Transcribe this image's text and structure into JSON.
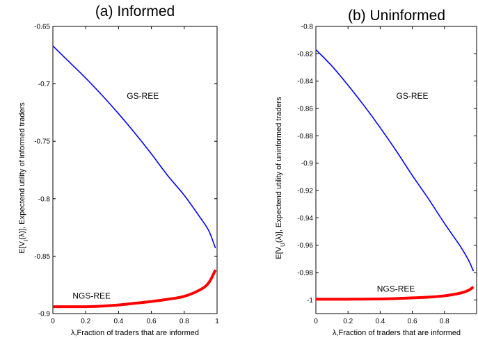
{
  "chart_data": [
    {
      "type": "line",
      "title": "(a) Informed",
      "xlabel": "λ,Fraction of traders that are informed",
      "ylabel_parts": [
        "E[V",
        "I",
        "(λ)], Expectend utility of informed traders"
      ],
      "xlim": [
        0,
        1
      ],
      "ylim": [
        -0.9,
        -0.65
      ],
      "xticks": [
        0,
        0.2,
        0.4,
        0.6,
        0.8,
        1
      ],
      "xtick_labels": [
        "0",
        "0.2",
        "0.4",
        "0.6",
        "0.8",
        "1"
      ],
      "yticks": [
        -0.9,
        -0.85,
        -0.8,
        -0.75,
        -0.7,
        -0.65
      ],
      "ytick_labels": [
        "-0.9",
        "-0.85",
        "-0.8",
        "-0.75",
        "-0.7",
        "-0.65"
      ],
      "series": [
        {
          "name": "GS-REE",
          "color": "#0000ff",
          "width": 1.6,
          "x": [
            0,
            0.1,
            0.2,
            0.3,
            0.4,
            0.5,
            0.6,
            0.7,
            0.8,
            0.9,
            0.95,
            0.99
          ],
          "y": [
            -0.667,
            -0.681,
            -0.695,
            -0.71,
            -0.726,
            -0.743,
            -0.761,
            -0.78,
            -0.797,
            -0.817,
            -0.828,
            -0.843
          ]
        },
        {
          "name": "NGS-REE",
          "color": "#ff0000",
          "width": 4,
          "x": [
            0,
            0.1,
            0.2,
            0.3,
            0.4,
            0.5,
            0.6,
            0.7,
            0.8,
            0.9,
            0.95,
            0.99
          ],
          "y": [
            -0.894,
            -0.894,
            -0.894,
            -0.8935,
            -0.8925,
            -0.891,
            -0.8895,
            -0.8875,
            -0.885,
            -0.879,
            -0.873,
            -0.862
          ]
        }
      ],
      "annotations": [
        {
          "text": "GS-REE",
          "x": 0.45,
          "y": -0.713
        },
        {
          "text": "NGS-REE",
          "x": 0.12,
          "y": -0.887
        }
      ]
    },
    {
      "type": "line",
      "title": "(b) Uninformed",
      "xlabel": "λ,Fraction of traders that are informed",
      "ylabel_parts": [
        "E[V",
        "U",
        "(λ)], Expectend utility of uninformed traders"
      ],
      "xlim": [
        0,
        1
      ],
      "ylim": [
        -1.01,
        -0.8
      ],
      "xticks": [
        0,
        0.2,
        0.4,
        0.6,
        0.8
      ],
      "xtick_labels": [
        "0",
        "0.2",
        "0.4",
        "0.6",
        "0.8"
      ],
      "yticks": [
        -1,
        -0.98,
        -0.96,
        -0.94,
        -0.92,
        -0.9,
        -0.88,
        -0.86,
        -0.84,
        -0.82,
        -0.8
      ],
      "ytick_labels": [
        "-1",
        "-0.98",
        "-0.96",
        "-0.94",
        "-0.92",
        "-0.9",
        "-0.88",
        "-0.86",
        "-0.84",
        "-0.82",
        "-0.8"
      ],
      "series": [
        {
          "name": "GS-REE",
          "color": "#0000ff",
          "width": 1.6,
          "x": [
            0,
            0.1,
            0.2,
            0.3,
            0.4,
            0.5,
            0.6,
            0.7,
            0.8,
            0.9,
            0.95,
            0.98
          ],
          "y": [
            -0.817,
            -0.829,
            -0.843,
            -0.858,
            -0.874,
            -0.891,
            -0.909,
            -0.926,
            -0.944,
            -0.961,
            -0.971,
            -0.979
          ]
        },
        {
          "name": "NGS-REE",
          "color": "#ff0000",
          "width": 4,
          "x": [
            0,
            0.2,
            0.4,
            0.5,
            0.6,
            0.7,
            0.8,
            0.9,
            0.95,
            0.98
          ],
          "y": [
            -0.9995,
            -0.9995,
            -0.9993,
            -0.999,
            -0.9985,
            -0.998,
            -0.997,
            -0.995,
            -0.993,
            -0.9905
          ]
        }
      ],
      "annotations": [
        {
          "text": "GS-REE",
          "x": 0.5,
          "y": -0.853
        },
        {
          "text": "NGS-REE",
          "x": 0.38,
          "y": -0.994
        }
      ]
    }
  ]
}
